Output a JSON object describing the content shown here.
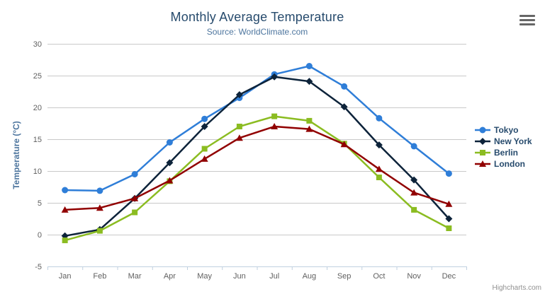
{
  "chart_data": {
    "type": "line",
    "title": "Monthly Average Temperature",
    "subtitle": "Source: WorldClimate.com",
    "xlabel": "",
    "ylabel": "Temperature (°C)",
    "categories": [
      "Jan",
      "Feb",
      "Mar",
      "Apr",
      "May",
      "Jun",
      "Jul",
      "Aug",
      "Sep",
      "Oct",
      "Nov",
      "Dec"
    ],
    "ylim": [
      -5,
      30
    ],
    "ytick_interval": 5,
    "ytick_labels": [
      "-5",
      "0",
      "5",
      "10",
      "15",
      "20",
      "25",
      "30"
    ],
    "grid": true,
    "legend_position": "right",
    "series": [
      {
        "name": "Tokyo",
        "color": "#2f7ed8",
        "marker": "circle",
        "values": [
          7.0,
          6.9,
          9.5,
          14.5,
          18.2,
          21.5,
          25.2,
          26.5,
          23.3,
          18.3,
          13.9,
          9.6
        ]
      },
      {
        "name": "New York",
        "color": "#0d233a",
        "marker": "diamond",
        "values": [
          -0.2,
          0.8,
          5.7,
          11.3,
          17.0,
          22.0,
          24.8,
          24.1,
          20.1,
          14.1,
          8.6,
          2.5
        ]
      },
      {
        "name": "Berlin",
        "color": "#8bbc21",
        "marker": "square",
        "values": [
          -0.9,
          0.6,
          3.5,
          8.4,
          13.5,
          17.0,
          18.6,
          17.9,
          14.3,
          9.0,
          3.9,
          1.0
        ]
      },
      {
        "name": "London",
        "color": "#910000",
        "marker": "triangle",
        "values": [
          3.9,
          4.2,
          5.7,
          8.5,
          11.9,
          15.2,
          17.0,
          16.6,
          14.2,
          10.3,
          6.6,
          4.8
        ]
      }
    ],
    "credits": "Highcharts.com",
    "icons": {
      "context_menu": "hamburger-icon"
    },
    "colors": {
      "title": "#274b6d",
      "subtitle": "#4d759e",
      "axis_title": "#4d759e",
      "axis_labels": "#606060",
      "gridline": "#c9c9c9",
      "axis_line": "#c0d0e0",
      "legend_text": "#274b6d",
      "burger_icon": "#666666",
      "credits_text": "#909090"
    }
  }
}
